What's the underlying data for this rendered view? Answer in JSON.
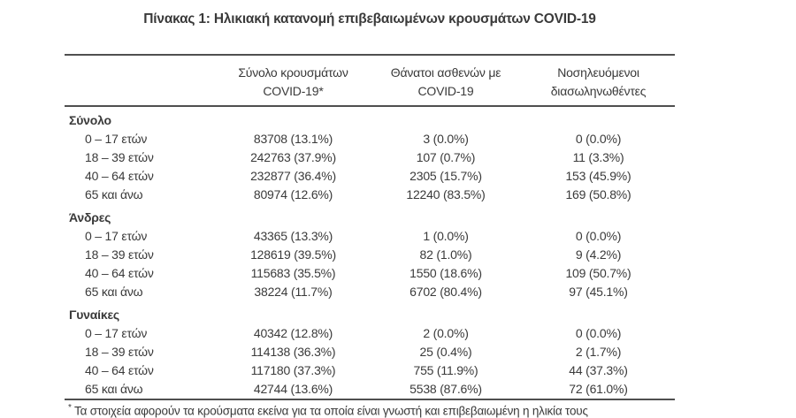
{
  "title": "Πίνακας 1: Ηλικιακή κατανομή επιβεβαιωμένων κρουσμάτων COVID-19",
  "table": {
    "columns": [
      {
        "line1": "",
        "line2": ""
      },
      {
        "line1": "Σύνολο κρουσμάτων",
        "line2": "COVID-19*"
      },
      {
        "line1": "Θάνατοι ασθενών με",
        "line2": "COVID-19"
      },
      {
        "line1": "Νοσηλευόμενοι",
        "line2": "διασωληνωθέντες"
      }
    ],
    "sections": [
      {
        "label": "Σύνολο",
        "rows": [
          {
            "age": "0 – 17 ετών",
            "cases": "83708 (13.1%)",
            "deaths": "3 (0.0%)",
            "intubated": "0 (0.0%)"
          },
          {
            "age": "18 – 39 ετών",
            "cases": "242763 (37.9%)",
            "deaths": "107 (0.7%)",
            "intubated": "11 (3.3%)"
          },
          {
            "age": "40 – 64 ετών",
            "cases": "232877 (36.4%)",
            "deaths": "2305 (15.7%)",
            "intubated": "153 (45.9%)"
          },
          {
            "age": "65 και άνω",
            "cases": "80974 (12.6%)",
            "deaths": "12240 (83.5%)",
            "intubated": "169 (50.8%)"
          }
        ]
      },
      {
        "label": "Άνδρες",
        "rows": [
          {
            "age": "0 – 17 ετών",
            "cases": "43365 (13.3%)",
            "deaths": "1 (0.0%)",
            "intubated": "0 (0.0%)"
          },
          {
            "age": "18 – 39 ετών",
            "cases": "128619 (39.5%)",
            "deaths": "82 (1.0%)",
            "intubated": "9 (4.2%)"
          },
          {
            "age": "40 – 64 ετών",
            "cases": "115683 (35.5%)",
            "deaths": "1550 (18.6%)",
            "intubated": "109 (50.7%)"
          },
          {
            "age": "65 και άνω",
            "cases": "38224 (11.7%)",
            "deaths": "6702 (80.4%)",
            "intubated": "97 (45.1%)"
          }
        ]
      },
      {
        "label": "Γυναίκες",
        "rows": [
          {
            "age": "0 – 17 ετών",
            "cases": "40342 (12.8%)",
            "deaths": "2 (0.0%)",
            "intubated": "0 (0.0%)"
          },
          {
            "age": "18 – 39 ετών",
            "cases": "114138 (36.3%)",
            "deaths": "25 (0.4%)",
            "intubated": "2 (1.7%)"
          },
          {
            "age": "40 – 64 ετών",
            "cases": "117180 (37.3%)",
            "deaths": "755 (11.9%)",
            "intubated": "44 (37.3%)"
          },
          {
            "age": "65 και άνω",
            "cases": "42744 (13.6%)",
            "deaths": "5538 (87.6%)",
            "intubated": "72 (61.0%)"
          }
        ]
      }
    ],
    "footnote_marker": "*",
    "footnote": "Τα στοιχεία αφορούν τα κρούσματα εκείνα για τα οποία είναι γνωστή και επιβεβαιωμένη η ηλικία τους"
  },
  "colors": {
    "text": "#3a3a3a",
    "rule": "#4f4f4f",
    "partial_line": "#b3b3b3",
    "background": "#ffffff"
  }
}
